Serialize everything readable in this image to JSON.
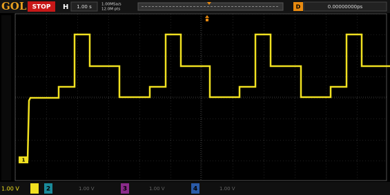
{
  "header": {
    "brand": "GOL",
    "status": "STOP",
    "timebase_label": "H",
    "timebase": "1.00 s",
    "sample_rate": "1.00MSa/s",
    "memory_depth": "12.0M pts",
    "delay_label": "D",
    "delay": "0.00000000ps"
  },
  "channel_marker": "1",
  "footer": {
    "ch1_scale": "1.00 V",
    "ch2_label": "2",
    "ch2_scale": "1.00 V",
    "ch3_label": "3",
    "ch3_scale": "1.00 V",
    "ch4_label": "4",
    "ch4_scale": "1.00 V"
  }
}
